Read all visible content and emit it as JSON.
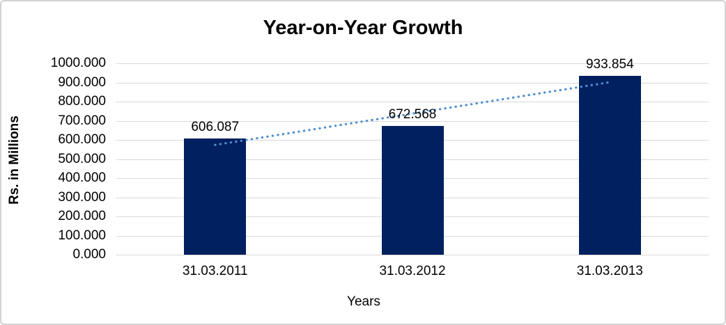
{
  "chart_data": {
    "type": "bar",
    "title": "Year-on-Year Growth",
    "categories": [
      "31.03.2011",
      "31.03.2012",
      "31.03.2013"
    ],
    "values": [
      606.087,
      672.568,
      933.854
    ],
    "value_labels": [
      "606.087",
      "672.568",
      "933.854"
    ],
    "xlabel": "Years",
    "ylabel": "Rs. in Millions",
    "ylim": [
      0,
      1000
    ],
    "y_tick_step": 100,
    "y_tick_labels": [
      "0.000",
      "100.000",
      "200.000",
      "300.000",
      "400.000",
      "500.000",
      "600.000",
      "700.000",
      "800.000",
      "900.000",
      "1000.000"
    ],
    "grid": "horizontal",
    "legend": "none",
    "trendline": {
      "type": "linear",
      "style": "round-dotted"
    },
    "colors": {
      "bar": "#002060",
      "trendline": "#4e8ed0",
      "gridline": "#d9d9d9",
      "axis_line": "#d9d9d9",
      "text": "#000000",
      "background": "#ffffff",
      "frame_border": "#d2d2d2"
    }
  }
}
